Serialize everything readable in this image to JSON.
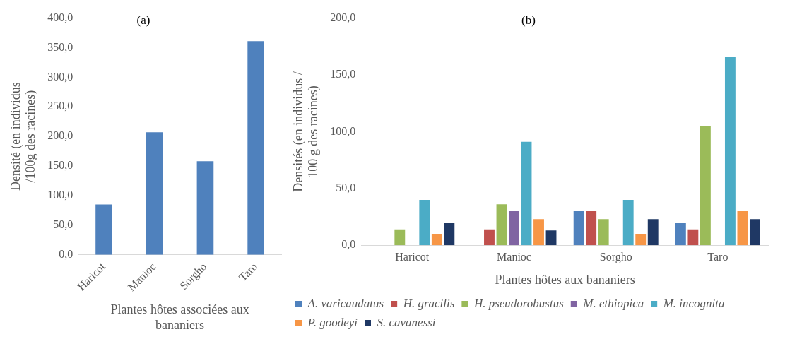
{
  "chart_data": [
    {
      "type": "bar",
      "title": "(a)",
      "xlabel": "Plantes hôtes associées aux bananiers",
      "ylabel": "Densité (en individus /100g des racines)",
      "categories": [
        "Haricot",
        "Manioc",
        "Sorgho",
        "Taro"
      ],
      "values": [
        85,
        207,
        158,
        361
      ],
      "color": "#4f81bd",
      "ylim": [
        0,
        400
      ],
      "yticks": [
        {
          "value": 0,
          "label": "0,0"
        },
        {
          "value": 50,
          "label": "50,0"
        },
        {
          "value": 100,
          "label": "100,0"
        },
        {
          "value": 150,
          "label": "150,0"
        },
        {
          "value": 200,
          "label": "200,0"
        },
        {
          "value": 250,
          "label": "250,0"
        },
        {
          "value": 300,
          "label": "300,0"
        },
        {
          "value": 350,
          "label": "350,0"
        },
        {
          "value": 400,
          "label": "400,0"
        }
      ],
      "grid": false,
      "legend": false
    },
    {
      "type": "bar",
      "title": "(b)",
      "xlabel": "Plantes hôtes aux bananiers",
      "ylabel": "Densités (en individus / 100 g des racines)",
      "categories": [
        "Haricot",
        "Manioc",
        "Sorgho",
        "Taro"
      ],
      "series": [
        {
          "name": "A. varicaudatus",
          "color": "#4f81bd",
          "values": [
            null,
            null,
            30,
            20
          ]
        },
        {
          "name": "H. gracilis",
          "color": "#c0504d",
          "values": [
            null,
            14,
            30,
            14
          ]
        },
        {
          "name": "H. pseudorobustus",
          "color": "#9bbb59",
          "values": [
            14,
            36,
            23,
            105
          ]
        },
        {
          "name": "M. ethiopica",
          "color": "#8064a2",
          "values": [
            null,
            30,
            null,
            null
          ]
        },
        {
          "name": "M. incognita",
          "color": "#4bacc6",
          "values": [
            40,
            91,
            40,
            166
          ]
        },
        {
          "name": "P. goodeyi",
          "color": "#f79646",
          "values": [
            10,
            23,
            10,
            30
          ]
        },
        {
          "name": "S. cavanessi",
          "color": "#1f3864",
          "values": [
            20,
            13,
            23,
            23
          ]
        }
      ],
      "ylim": [
        0,
        200
      ],
      "yticks": [
        {
          "value": 0,
          "label": "0,0"
        },
        {
          "value": 50,
          "label": "50,0"
        },
        {
          "value": 100,
          "label": "100,0"
        },
        {
          "value": 150,
          "label": "150,0"
        },
        {
          "value": 200,
          "label": "200,0"
        }
      ],
      "grid": false,
      "legend": "bottom"
    }
  ]
}
